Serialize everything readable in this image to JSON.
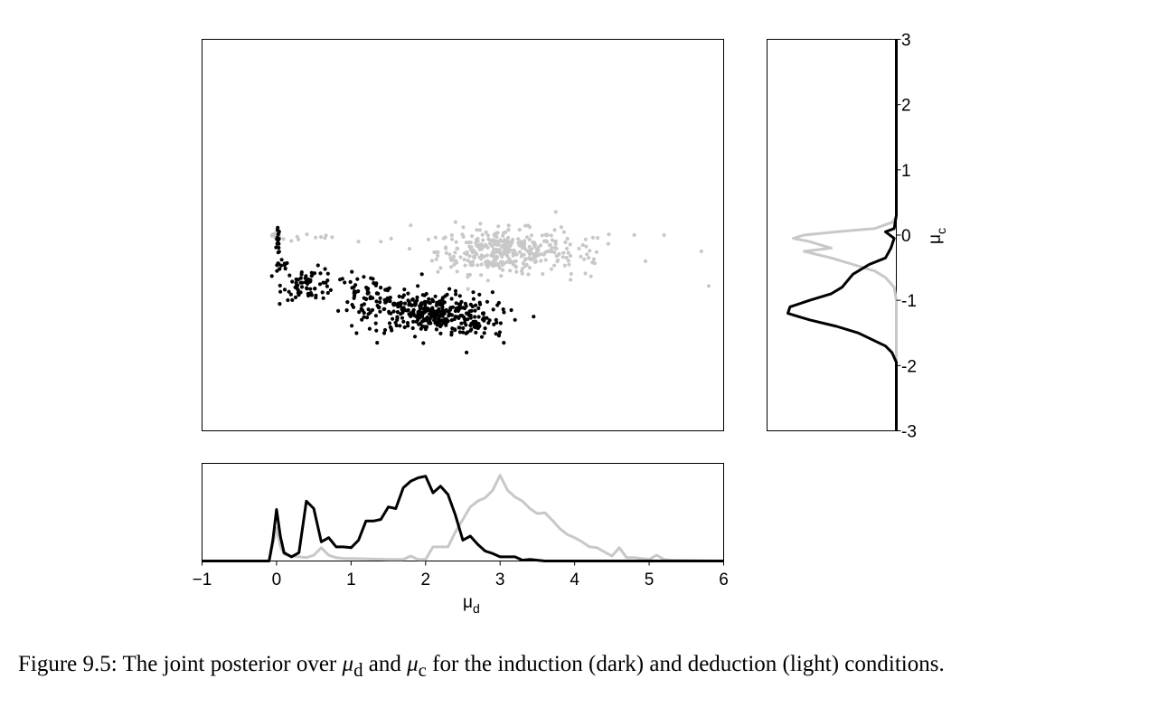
{
  "chart_data": [
    {
      "id": "joint",
      "type": "scatter",
      "xlim": [
        -1,
        6
      ],
      "ylim": [
        -3,
        3
      ],
      "series": [
        {
          "color": "#000000",
          "clusters": [
            {
              "cx": 0.02,
              "cy": -0.1,
              "sx": 0.01,
              "sy": 0.1,
              "n": 15
            },
            {
              "cx": 0.05,
              "cy": -0.5,
              "sx": 0.06,
              "sy": 0.05,
              "n": 12
            },
            {
              "cx": 0.45,
              "cy": -0.75,
              "sx": 0.18,
              "sy": 0.12,
              "n": 70
            },
            {
              "cx": 1.2,
              "cy": -0.9,
              "sx": 0.22,
              "sy": 0.15,
              "n": 60
            },
            {
              "cx": 2.05,
              "cy": -1.2,
              "sx": 0.42,
              "sy": 0.16,
              "n": 330
            },
            {
              "cx": 2.75,
              "cy": -1.4,
              "sx": 0.18,
              "sy": 0.1,
              "n": 25
            }
          ],
          "outliers": [
            [
              3.15,
              -1.15
            ],
            [
              3.45,
              -1.25
            ],
            [
              3.05,
              -1.65
            ],
            [
              2.55,
              -1.8
            ],
            [
              3.2,
              -1.3
            ],
            [
              1.95,
              -0.6
            ],
            [
              1.35,
              -1.65
            ]
          ]
        },
        {
          "color": "#c8c8c8",
          "clusters": [
            {
              "cx": 0.0,
              "cy": 0.0,
              "sx": 0.03,
              "sy": 0.02,
              "n": 25
            },
            {
              "cx": 0.5,
              "cy": -0.05,
              "sx": 0.25,
              "sy": 0.03,
              "n": 10
            },
            {
              "cx": 3.0,
              "cy": -0.25,
              "sx": 0.42,
              "sy": 0.17,
              "n": 330
            },
            {
              "cx": 3.9,
              "cy": -0.3,
              "sx": 0.35,
              "sy": 0.2,
              "n": 45
            }
          ],
          "outliers": [
            [
              1.8,
              0.15
            ],
            [
              2.4,
              0.2
            ],
            [
              4.8,
              0.0
            ],
            [
              5.2,
              0.0
            ],
            [
              5.7,
              -0.25
            ],
            [
              5.8,
              -0.78
            ],
            [
              4.95,
              -0.4
            ],
            [
              1.4,
              -0.1
            ],
            [
              1.1,
              -0.1
            ]
          ]
        }
      ]
    },
    {
      "id": "marginal_x",
      "type": "line",
      "xlim": [
        -1,
        6
      ],
      "xticks": [
        "−1",
        "0",
        "1",
        "2",
        "3",
        "4",
        "5",
        "6"
      ],
      "xticks_values": [
        -1,
        0,
        1,
        2,
        3,
        4,
        5,
        6
      ],
      "xlabel": "μ",
      "xlabel_sub": "d",
      "series": [
        {
          "color": "#000000",
          "x": [
            -1,
            -0.1,
            -0.05,
            0,
            0.05,
            0.1,
            0.2,
            0.3,
            0.4,
            0.5,
            0.6,
            0.7,
            0.8,
            0.9,
            1.0,
            1.1,
            1.2,
            1.3,
            1.4,
            1.5,
            1.6,
            1.7,
            1.8,
            1.9,
            2.0,
            2.1,
            2.2,
            2.3,
            2.4,
            2.5,
            2.6,
            2.7,
            2.8,
            2.9,
            3.0,
            3.1,
            3.2,
            3.3,
            3.4,
            3.5,
            3.6,
            4.0,
            4.5,
            5.0,
            6.0
          ],
          "y": [
            0,
            0,
            0.25,
            0.62,
            0.3,
            0.1,
            0.05,
            0.1,
            0.72,
            0.63,
            0.23,
            0.28,
            0.17,
            0.17,
            0.16,
            0.25,
            0.48,
            0.48,
            0.5,
            0.65,
            0.63,
            0.88,
            0.96,
            1.0,
            1.02,
            0.82,
            0.9,
            0.8,
            0.55,
            0.25,
            0.3,
            0.2,
            0.12,
            0.09,
            0.05,
            0.05,
            0.05,
            0.01,
            0.02,
            0.01,
            0,
            0,
            0,
            0,
            0
          ]
        },
        {
          "color": "#c8c8c8",
          "x": [
            -1,
            -0.1,
            -0.05,
            0,
            0.05,
            0.1,
            0.2,
            0.3,
            0.4,
            0.5,
            0.6,
            0.7,
            0.8,
            0.9,
            1.0,
            1.5,
            1.7,
            1.8,
            1.9,
            2.0,
            2.1,
            2.2,
            2.3,
            2.4,
            2.5,
            2.6,
            2.7,
            2.8,
            2.9,
            3.0,
            3.1,
            3.2,
            3.3,
            3.4,
            3.5,
            3.6,
            3.7,
            3.8,
            3.9,
            4.0,
            4.1,
            4.2,
            4.3,
            4.4,
            4.5,
            4.6,
            4.7,
            4.8,
            5.0,
            5.1,
            5.2,
            5.3,
            6.0
          ],
          "y": [
            0,
            0,
            0.2,
            0.4,
            0.18,
            0.08,
            0.06,
            0.05,
            0.04,
            0.07,
            0.16,
            0.07,
            0.04,
            0.03,
            0.03,
            0.02,
            0.02,
            0.06,
            0.02,
            0.02,
            0.17,
            0.17,
            0.17,
            0.35,
            0.5,
            0.65,
            0.72,
            0.76,
            0.85,
            1.03,
            0.85,
            0.77,
            0.72,
            0.63,
            0.57,
            0.58,
            0.49,
            0.39,
            0.32,
            0.28,
            0.23,
            0.17,
            0.16,
            0.11,
            0.06,
            0.16,
            0.04,
            0.04,
            0.02,
            0.07,
            0.02,
            0.01,
            0
          ]
        }
      ]
    },
    {
      "id": "marginal_y",
      "type": "line",
      "ylim": [
        -3,
        3
      ],
      "yticks": [
        "3",
        "2",
        "1",
        "0",
        "-1",
        "-2",
        "-3"
      ],
      "yticks_values": [
        3,
        2,
        1,
        0,
        -1,
        -2,
        -3
      ],
      "ylabel": "μ",
      "ylabel_sub": "c",
      "series": [
        {
          "color": "#000000",
          "y": [
            3,
            0.3,
            0.1,
            0.05,
            -0.05,
            -0.2,
            -0.35,
            -0.45,
            -0.6,
            -0.8,
            -0.9,
            -1.0,
            -1.1,
            -1.2,
            -1.3,
            -1.4,
            -1.5,
            -1.7,
            -1.8,
            -1.95,
            -3
          ],
          "v": [
            0,
            0,
            0.02,
            0.1,
            0.02,
            0.05,
            0.1,
            0.25,
            0.4,
            0.5,
            0.6,
            0.8,
            0.98,
            1.0,
            0.8,
            0.55,
            0.35,
            0.1,
            0.04,
            0,
            0
          ]
        },
        {
          "color": "#c8c8c8",
          "y": [
            3,
            0.3,
            0.2,
            0.1,
            0.05,
            0,
            -0.05,
            -0.1,
            -0.15,
            -0.2,
            -0.25,
            -0.35,
            -0.45,
            -0.55,
            -0.65,
            -0.8,
            -1.0,
            -3
          ],
          "v": [
            0,
            0,
            0.03,
            0.2,
            0.55,
            0.85,
            0.95,
            0.8,
            0.7,
            0.6,
            0.85,
            0.6,
            0.4,
            0.2,
            0.1,
            0.02,
            0,
            0
          ]
        }
      ]
    }
  ],
  "caption": {
    "prefix": "Figure 9.5:  The joint posterior over",
    "mu": "μ",
    "sub_d": "d",
    "and": "and",
    "sub_c": "c",
    "suffix": "for the induction (dark) and deduction (light) conditions."
  }
}
